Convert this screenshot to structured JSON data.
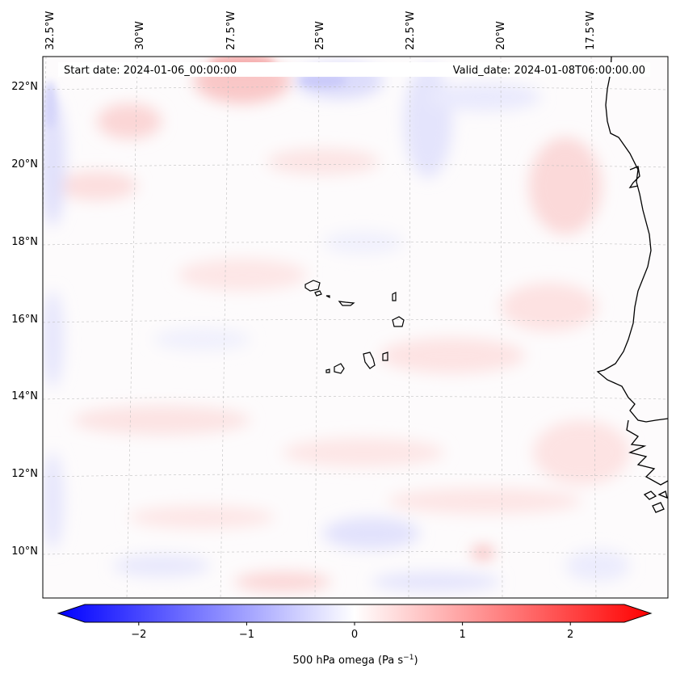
{
  "header": {
    "start_date": "Start date: 2024-01-06_00:00:00",
    "valid_date": "Valid_date: 2024-01-08T06:00:00.00"
  },
  "lon_labels": [
    "32.5°W",
    "30°W",
    "27.5°W",
    "25°W",
    "22.5°W",
    "20°W",
    "17.5°W"
  ],
  "lat_labels": [
    "22°N",
    "20°N",
    "18°N",
    "16°N",
    "14°N",
    "12°N",
    "10°N"
  ],
  "colorbar": {
    "label_prefix": "500 hPa omega (Pa s",
    "label_exponent": "−1",
    "label_suffix": ")",
    "min": -2.5,
    "max": 2.5,
    "ticks": [
      "−2",
      "−1",
      "0",
      "1",
      "2"
    ],
    "tick_values": [
      -2,
      -1,
      0,
      1,
      2
    ],
    "colors": {
      "low": "#0000ff",
      "mid": "#ffffff",
      "high": "#ff0000"
    }
  },
  "map": {
    "field": "500 hPa omega",
    "colormap": "bwr",
    "gridlines": true,
    "coastline_color": "#000000"
  }
}
